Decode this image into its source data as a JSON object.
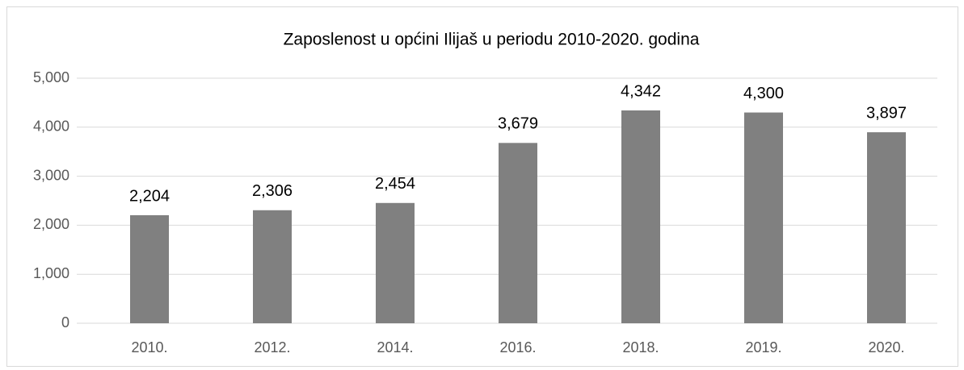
{
  "chart_data": {
    "type": "bar",
    "title": "Zaposlenost u općini Ilijaš u periodu 2010-2020. godina",
    "categories": [
      "2010.",
      "2012.",
      "2014.",
      "2016.",
      "2018.",
      "2019.",
      "2020."
    ],
    "values": [
      2204,
      2306,
      2454,
      3679,
      4342,
      4300,
      3897
    ],
    "value_labels": [
      "2,204",
      "2,306",
      "2,454",
      "3,679",
      "4,342",
      "4,300",
      "3,897"
    ],
    "color": "#808080",
    "ylim": [
      0,
      5000
    ],
    "yticks": [
      0,
      {
        "value": 1000,
        "label": "1,000"
      },
      {
        "value": 2000,
        "label": "2,000"
      },
      {
        "value": 3000,
        "label": "3,000"
      },
      {
        "value": 4000,
        "label": "4,000"
      },
      {
        "value": 5000,
        "label": "5,000"
      }
    ],
    "grid": true
  }
}
